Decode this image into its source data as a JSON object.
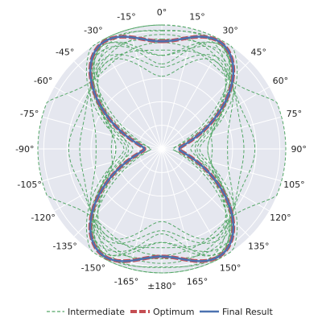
{
  "chart_data": {
    "type": "line",
    "subtype": "polar",
    "angular_zero": "top",
    "angular_direction": "clockwise",
    "angle_ticks": [
      "0°",
      "15°",
      "30°",
      "45°",
      "60°",
      "75°",
      "90°",
      "105°",
      "120°",
      "135°",
      "150°",
      "165°",
      "±180°",
      "-165°",
      "-150°",
      "-135°",
      "-120°",
      "-105°",
      "-90°",
      "-75°",
      "-60°",
      "-45°",
      "-30°",
      "-15°"
    ],
    "radial_range": [
      0,
      1.05
    ],
    "radial_gridlines": [
      0.2,
      0.4,
      0.6,
      0.8,
      1.0
    ],
    "radial_tick_labels_shown": false,
    "grid": true,
    "background_color": "#e5e7ef",
    "grid_color": "#ffffff",
    "legend_position": "bottom",
    "series": [
      {
        "name": "Intermediate",
        "style": "dashed",
        "color": "#55a868",
        "count": 13,
        "profiles": [
          {
            "peak_angle_deg": 31,
            "peak_r": 0.98,
            "base_r": 0.02,
            "width_deg": 23,
            "side_lobe_r": 0.0
          },
          {
            "peak_angle_deg": 30,
            "peak_r": 0.93,
            "base_r": 0.05,
            "width_deg": 27,
            "side_lobe_r": 0.1
          },
          {
            "peak_angle_deg": 33,
            "peak_r": 0.88,
            "base_r": 0.04,
            "width_deg": 24,
            "side_lobe_r": 0.25
          },
          {
            "peak_angle_deg": 29,
            "peak_r": 0.96,
            "base_r": 0.06,
            "width_deg": 31,
            "side_lobe_r": 0.0
          },
          {
            "peak_angle_deg": 32,
            "peak_r": 0.85,
            "base_r": 0.08,
            "width_deg": 22,
            "side_lobe_r": 0.3
          },
          {
            "peak_angle_deg": 28,
            "peak_r": 0.9,
            "base_r": 0.03,
            "width_deg": 26,
            "side_lobe_r": 0.15
          },
          {
            "peak_angle_deg": 34,
            "peak_r": 0.8,
            "base_r": 0.1,
            "width_deg": 30,
            "side_lobe_r": 0.35
          },
          {
            "peak_angle_deg": 30,
            "peak_r": 0.99,
            "base_r": 0.02,
            "width_deg": 21,
            "side_lobe_r": 0.05
          },
          {
            "peak_angle_deg": 31,
            "peak_r": 0.78,
            "base_r": 0.12,
            "width_deg": 33,
            "side_lobe_r": 0.4
          },
          {
            "peak_angle_deg": 27,
            "peak_r": 0.92,
            "base_r": 0.05,
            "width_deg": 28,
            "side_lobe_r": 0.2
          },
          {
            "peak_angle_deg": 33,
            "peak_r": 0.94,
            "base_r": 0.03,
            "width_deg": 25,
            "side_lobe_r": 0.08
          },
          {
            "peak_angle_deg": 30,
            "peak_r": 0.7,
            "base_r": 0.18,
            "width_deg": 35,
            "side_lobe_r": 0.9
          },
          {
            "peak_angle_deg": 32,
            "peak_r": 0.86,
            "base_r": 0.06,
            "width_deg": 29,
            "side_lobe_r": 0.28
          }
        ]
      },
      {
        "name": "Optimum",
        "style": "solid-thick",
        "color": "#c44e52",
        "profile": {
          "peak_angle_deg": 31,
          "peak_r": 0.98,
          "base_r": 0.03,
          "width_deg": 25,
          "side_lobe_r": 0.0
        }
      },
      {
        "name": "Final Result",
        "style": "solid",
        "color": "#4c72b0",
        "profile": {
          "peak_angle_deg": 31,
          "peak_r": 0.98,
          "base_r": 0.03,
          "width_deg": 25,
          "side_lobe_r": 0.0
        }
      }
    ]
  }
}
